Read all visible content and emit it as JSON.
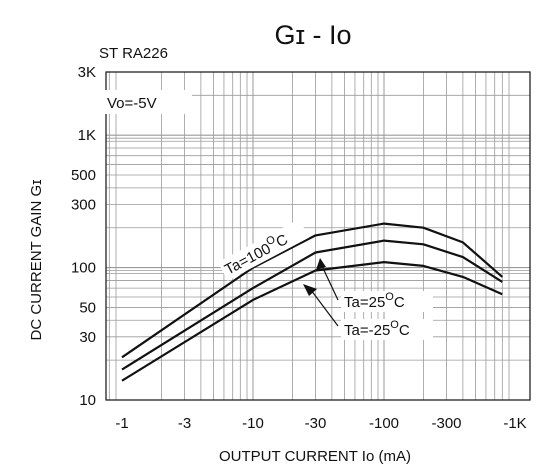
{
  "chart_data": {
    "type": "line",
    "title": "Gɪ - Io",
    "subtitle": "ST RA226",
    "condition": "Vo=-5V",
    "xlabel": "OUTPUT CURRENT Io (mA)",
    "ylabel": "DC CURRENT GAIN Gɪ",
    "x_scale": "log",
    "y_scale": "log",
    "xlim": [
      1,
      1000
    ],
    "ylim": [
      10,
      3000
    ],
    "x_ticks": [
      {
        "value": 1,
        "label": "-1"
      },
      {
        "value": 3,
        "label": "-3"
      },
      {
        "value": 10,
        "label": "-10"
      },
      {
        "value": 30,
        "label": "-30"
      },
      {
        "value": 100,
        "label": "-100"
      },
      {
        "value": 300,
        "label": "-300"
      },
      {
        "value": 1000,
        "label": "-1K"
      }
    ],
    "y_ticks": [
      {
        "value": 10,
        "label": "10"
      },
      {
        "value": 30,
        "label": "30"
      },
      {
        "value": 50,
        "label": "50"
      },
      {
        "value": 100,
        "label": "100"
      },
      {
        "value": 300,
        "label": "300"
      },
      {
        "value": 500,
        "label": "500"
      },
      {
        "value": 1000,
        "label": "1K"
      },
      {
        "value": 3000,
        "label": "3K"
      }
    ],
    "grid": true,
    "series": [
      {
        "name": "Ta=100°C",
        "label_main": "Ta=100",
        "label_sup": "O",
        "label_unit": "C",
        "x": [
          1,
          10,
          30,
          100,
          200,
          400,
          800
        ],
        "y": [
          21,
          100,
          175,
          215,
          200,
          155,
          85
        ]
      },
      {
        "name": "Ta=25°C",
        "label_main": "Ta=25",
        "label_sup": "O",
        "label_unit": "C",
        "x": [
          1,
          10,
          30,
          100,
          200,
          400,
          800
        ],
        "y": [
          17,
          70,
          130,
          160,
          150,
          120,
          78
        ]
      },
      {
        "name": "Ta=-25°C",
        "label_main": "Ta=-25",
        "label_sup": "O",
        "label_unit": "C",
        "x": [
          1,
          10,
          30,
          100,
          200,
          400,
          800
        ],
        "y": [
          14,
          57,
          95,
          110,
          103,
          85,
          63
        ]
      }
    ],
    "colors": {
      "line": "#111111",
      "grid": "#9a9a9a",
      "background": "#ffffff"
    }
  }
}
